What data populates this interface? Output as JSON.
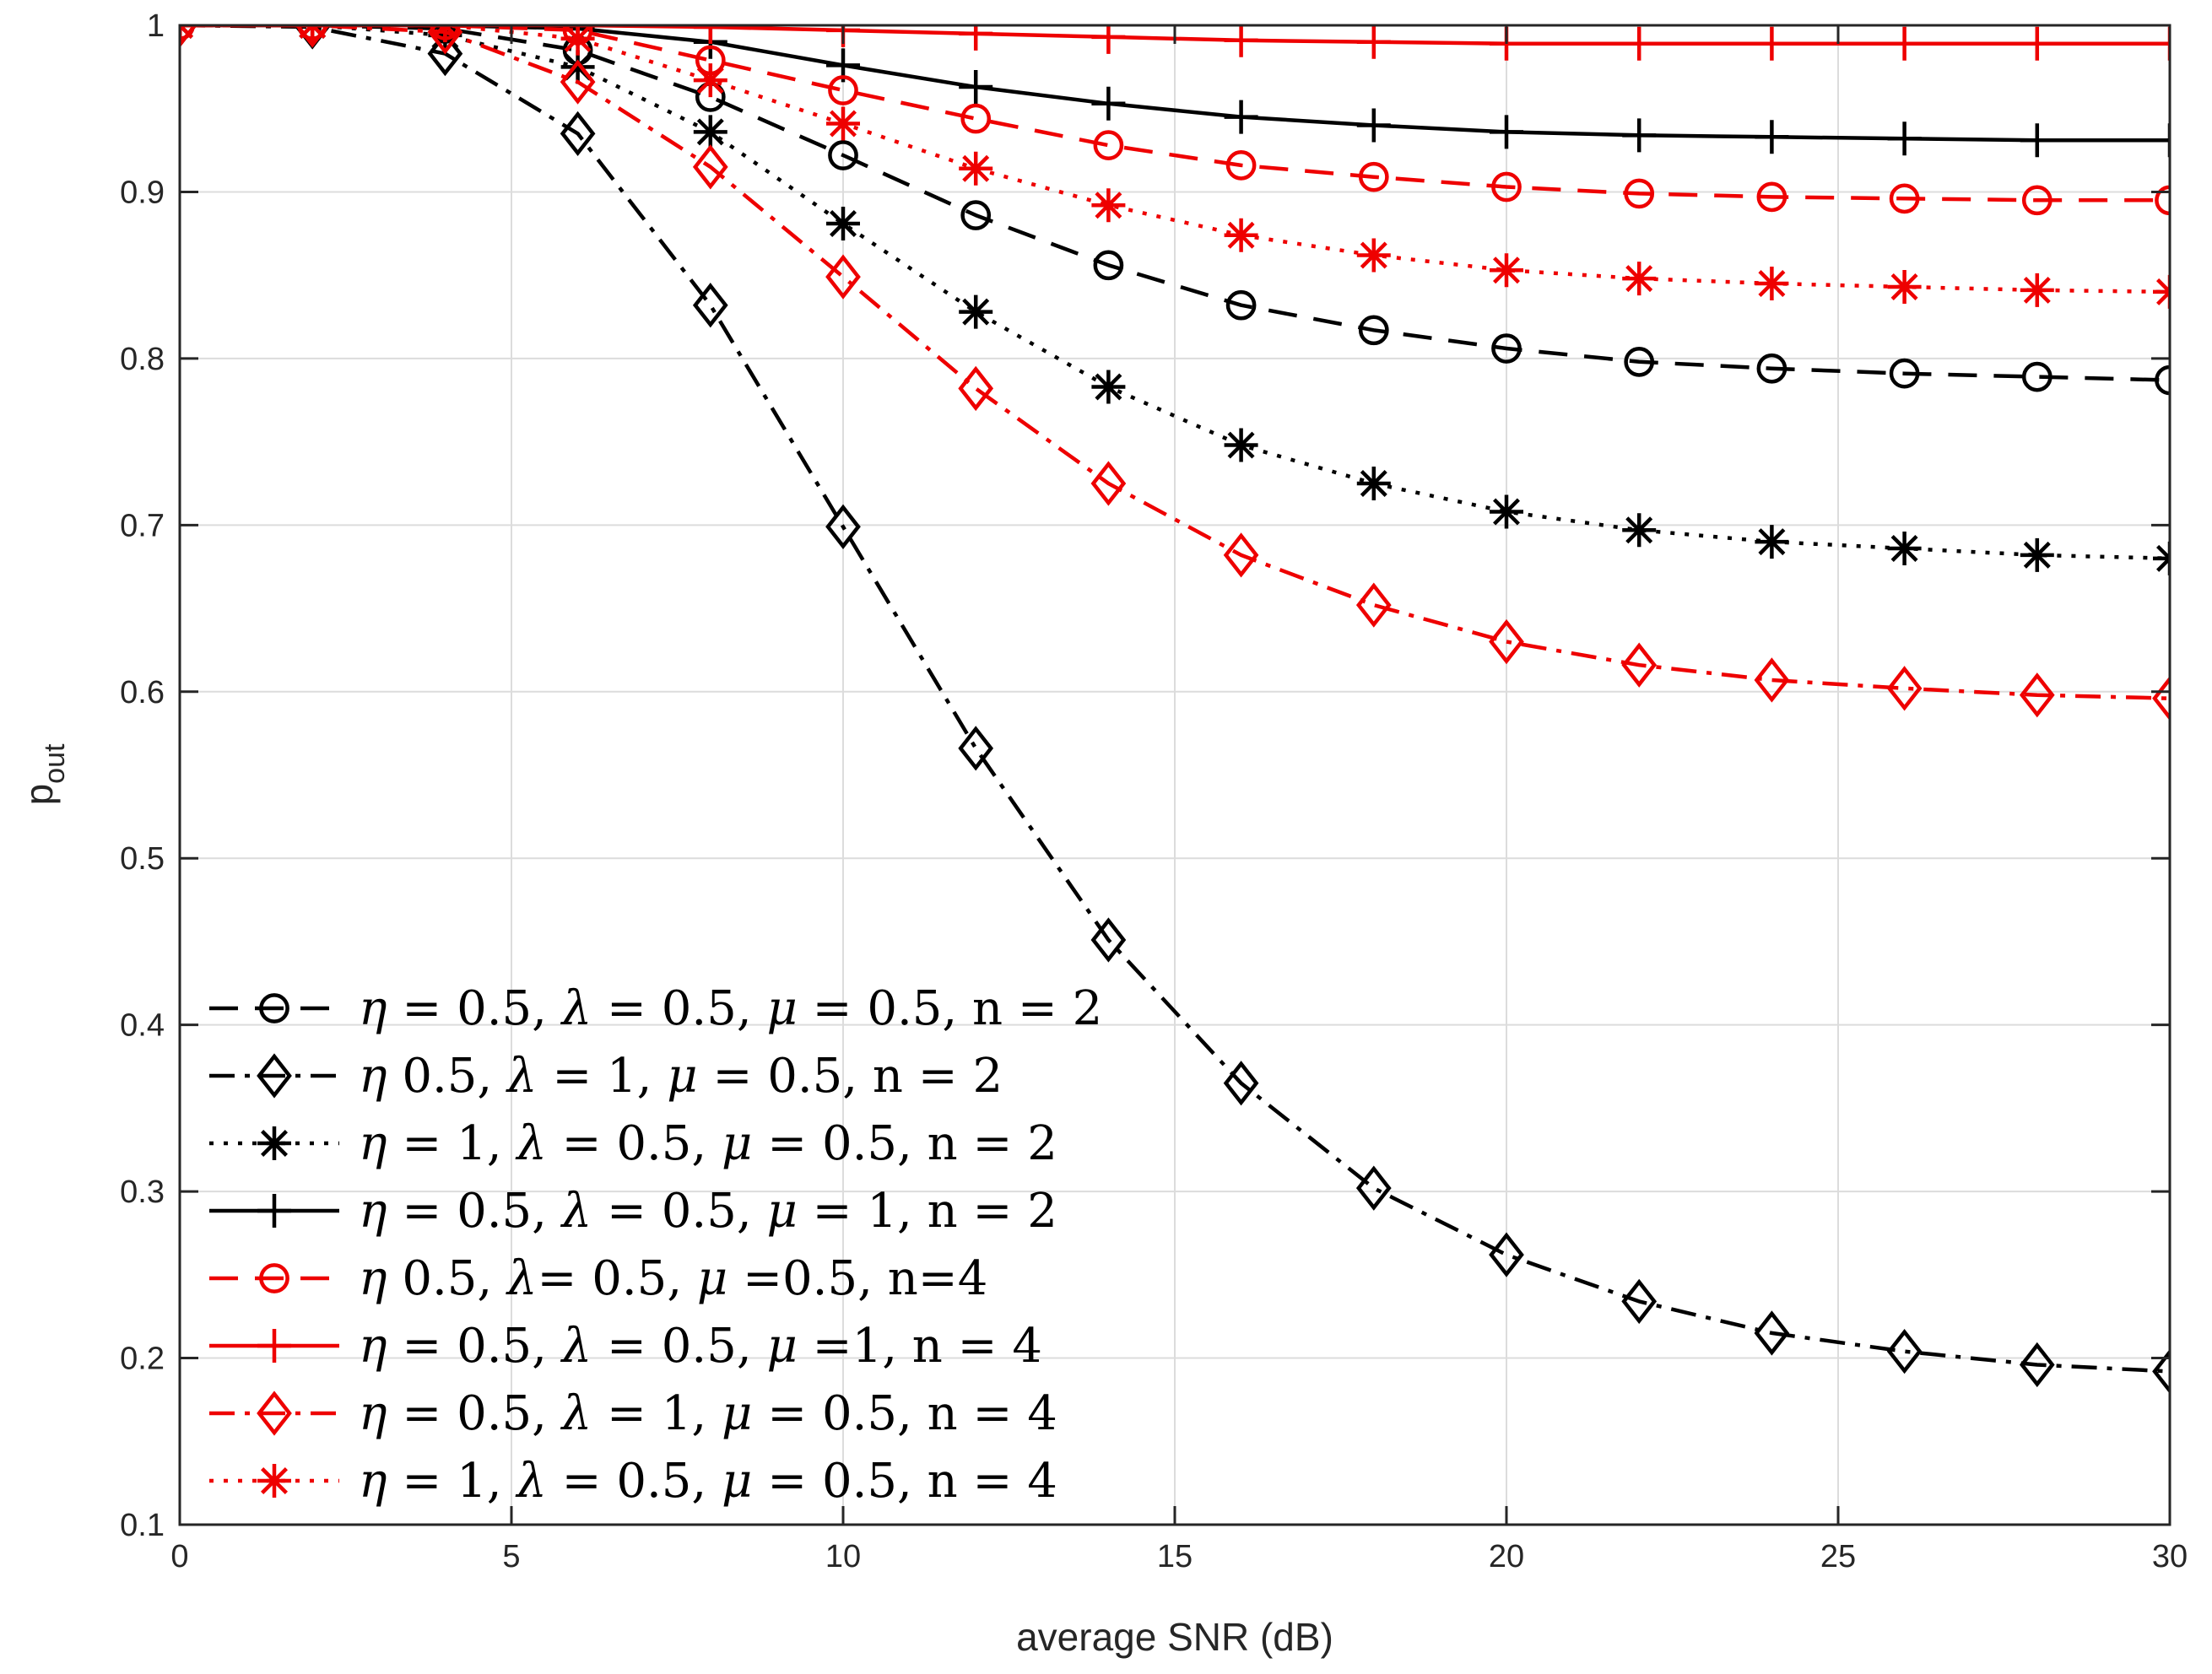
{
  "chart_data": {
    "type": "line",
    "xlabel": "average SNR (dB)",
    "ylabel": "p",
    "ylabel_subscript": "out",
    "xlim": [
      0,
      30
    ],
    "ylim": [
      0.1,
      1.0
    ],
    "xticks": [
      0,
      5,
      10,
      15,
      20,
      25,
      30
    ],
    "yticks": [
      0.1,
      0.2,
      0.3,
      0.4,
      0.5,
      0.6,
      0.7,
      0.8,
      0.9,
      1.0
    ],
    "xtick_labels": [
      "0",
      "5",
      "10",
      "15",
      "20",
      "25",
      "30"
    ],
    "ytick_labels": [
      "0.1",
      "0.2",
      "0.3",
      "0.4",
      "0.5",
      "0.6",
      "0.7",
      "0.8",
      "0.9",
      "1"
    ],
    "grid": true,
    "legend_position": "bottom-left",
    "x": [
      0,
      2,
      4,
      6,
      8,
      10,
      12,
      14,
      16,
      18,
      20,
      22,
      24,
      26,
      28,
      30
    ],
    "series": [
      {
        "name": "η = 0.5,  λ = 0.5, μ = 0.5, n = 2",
        "legend_parts": [
          [
            "sym",
            "η"
          ],
          [
            "txt",
            " = 0.5,  "
          ],
          [
            "sym",
            "λ"
          ],
          [
            "txt",
            " = 0.5, "
          ],
          [
            "sym",
            "μ"
          ],
          [
            "txt",
            " = 0.5, n = 2"
          ]
        ],
        "color": "#000000",
        "dash": "dashed",
        "marker": "circle",
        "values": [
          1.0,
          1.0,
          0.998,
          0.985,
          0.957,
          0.922,
          0.886,
          0.856,
          0.832,
          0.817,
          0.806,
          0.798,
          0.794,
          0.791,
          0.789,
          0.787
        ]
      },
      {
        "name": "η 0.5, λ = 1, μ = 0.5, n = 2",
        "legend_parts": [
          [
            "sym",
            "η"
          ],
          [
            "txt",
            " 0.5, "
          ],
          [
            "sym",
            "λ"
          ],
          [
            "txt",
            " = 1, "
          ],
          [
            "sym",
            "μ"
          ],
          [
            "txt",
            " = 0.5, n = 2"
          ]
        ],
        "color": "#000000",
        "dash": "dashdot",
        "marker": "diamond",
        "values": [
          1.0,
          0.999,
          0.983,
          0.935,
          0.832,
          0.699,
          0.566,
          0.451,
          0.365,
          0.302,
          0.262,
          0.234,
          0.215,
          0.204,
          0.196,
          0.192
        ]
      },
      {
        "name": "η = 1, λ = 0.5, μ = 0.5, n = 2",
        "legend_parts": [
          [
            "sym",
            "η"
          ],
          [
            "txt",
            " = 1, "
          ],
          [
            "sym",
            "λ"
          ],
          [
            "txt",
            " = 0.5, "
          ],
          [
            "sym",
            "μ"
          ],
          [
            "txt",
            " = 0.5, n = 2"
          ]
        ],
        "color": "#000000",
        "dash": "dotted",
        "marker": "asterisk",
        "values": [
          1.0,
          1.0,
          0.994,
          0.975,
          0.936,
          0.881,
          0.828,
          0.783,
          0.748,
          0.725,
          0.708,
          0.697,
          0.69,
          0.686,
          0.682,
          0.68
        ]
      },
      {
        "name": "η = 0.5, λ = 0.5, μ = 1, n = 2",
        "legend_parts": [
          [
            "sym",
            "η"
          ],
          [
            "txt",
            " = 0.5, "
          ],
          [
            "sym",
            "λ"
          ],
          [
            "txt",
            " = 0.5, "
          ],
          [
            "sym",
            "μ"
          ],
          [
            "txt",
            " = 1, n = 2"
          ]
        ],
        "color": "#000000",
        "dash": "solid",
        "marker": "plus",
        "values": [
          1.0,
          1.0,
          1.0,
          0.998,
          0.99,
          0.976,
          0.963,
          0.953,
          0.945,
          0.94,
          0.936,
          0.934,
          0.933,
          0.932,
          0.931,
          0.931
        ]
      },
      {
        "name": "η 0.5, λ= 0.5, μ =0.5, n=4",
        "legend_parts": [
          [
            "sym",
            "η"
          ],
          [
            "txt",
            " 0.5, "
          ],
          [
            "sym",
            "λ"
          ],
          [
            "txt",
            "= 0.5, "
          ],
          [
            "sym",
            "μ"
          ],
          [
            "txt",
            " =0.5, n=4"
          ]
        ],
        "color": "#ee0000",
        "dash": "dashed",
        "marker": "circle",
        "values": [
          1.0,
          1.0,
          1.0,
          0.997,
          0.979,
          0.961,
          0.944,
          0.928,
          0.916,
          0.909,
          0.903,
          0.899,
          0.897,
          0.896,
          0.895,
          0.895
        ]
      },
      {
        "name": "η = 0.5, λ = 0.5, μ =1, n = 4",
        "legend_parts": [
          [
            "sym",
            "η"
          ],
          [
            "txt",
            " = 0.5, "
          ],
          [
            "sym",
            "λ"
          ],
          [
            "txt",
            " = 0.5, "
          ],
          [
            "sym",
            "μ"
          ],
          [
            "txt",
            " =1, n = 4"
          ]
        ],
        "color": "#ee0000",
        "dash": "solid",
        "marker": "plus",
        "values": [
          1.0,
          1.0,
          1.0,
          1.0,
          0.999,
          0.997,
          0.995,
          0.993,
          0.991,
          0.99,
          0.989,
          0.989,
          0.989,
          0.989,
          0.989,
          0.989
        ]
      },
      {
        "name": "η = 0.5, λ = 1, μ = 0.5, n = 4",
        "legend_parts": [
          [
            "sym",
            "η"
          ],
          [
            "txt",
            " = 0.5, "
          ],
          [
            "sym",
            "λ"
          ],
          [
            "txt",
            " = 1, "
          ],
          [
            "sym",
            "μ"
          ],
          [
            "txt",
            " = 0.5, n = 4"
          ]
        ],
        "color": "#ee0000",
        "dash": "dashdot",
        "marker": "diamond",
        "values": [
          1.0,
          1.0,
          0.996,
          0.966,
          0.915,
          0.849,
          0.782,
          0.725,
          0.682,
          0.652,
          0.63,
          0.616,
          0.607,
          0.602,
          0.598,
          0.596
        ]
      },
      {
        "name": "η = 1, λ = 0.5, μ = 0.5, n = 4",
        "legend_parts": [
          [
            "sym",
            "η"
          ],
          [
            "txt",
            " = 1, "
          ],
          [
            "sym",
            "λ"
          ],
          [
            "txt",
            " = 0.5, "
          ],
          [
            "sym",
            "μ"
          ],
          [
            "txt",
            " = 0.5, n = 4"
          ]
        ],
        "color": "#ee0000",
        "dash": "dotted",
        "marker": "asterisk",
        "values": [
          1.0,
          1.0,
          1.0,
          0.992,
          0.967,
          0.941,
          0.914,
          0.892,
          0.874,
          0.862,
          0.853,
          0.848,
          0.845,
          0.843,
          0.841,
          0.84
        ]
      }
    ]
  }
}
